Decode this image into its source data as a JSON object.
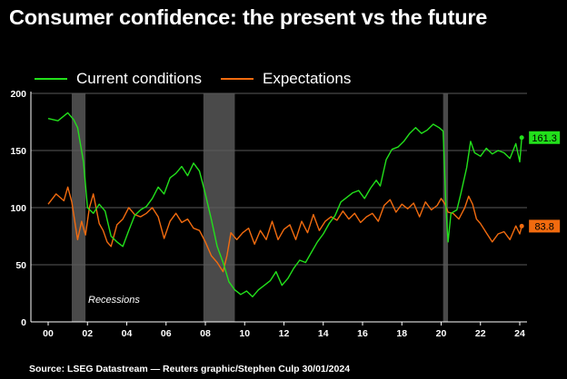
{
  "title": "Consumer confidence: the present vs the future",
  "source": "Source: LSEG Datastream — Reuters graphic/Stephen Culp 30/01/2024",
  "legend": [
    {
      "name": "Current conditions",
      "color": "#22e01b"
    },
    {
      "name": "Expectations",
      "color": "#f26b0f"
    }
  ],
  "recession_label": "Recessions",
  "chart_data": {
    "type": "line",
    "title": "Consumer confidence: the present vs the future",
    "xlabel": "",
    "ylabel": "",
    "x_ticks": [
      "00",
      "02",
      "04",
      "06",
      "08",
      "10",
      "12",
      "14",
      "16",
      "18",
      "20",
      "22",
      "24"
    ],
    "y_ticks": [
      0,
      50,
      100,
      150,
      200
    ],
    "xlim": [
      1999.4,
      2024.5
    ],
    "ylim": [
      0,
      200
    ],
    "grid": "horizontal",
    "legend_position": "top-left",
    "recessions": [
      [
        2001.2,
        2001.9
      ],
      [
        2007.9,
        2009.5
      ],
      [
        2020.1,
        2020.35
      ]
    ],
    "series": [
      {
        "name": "Current conditions",
        "color": "#22e01b",
        "end_label": "161.3",
        "points": [
          [
            2000.0,
            178
          ],
          [
            2000.5,
            176
          ],
          [
            2001.0,
            183
          ],
          [
            2001.3,
            177
          ],
          [
            2001.5,
            170
          ],
          [
            2001.8,
            140
          ],
          [
            2002.0,
            100
          ],
          [
            2002.3,
            95
          ],
          [
            2002.6,
            103
          ],
          [
            2002.9,
            97
          ],
          [
            2003.2,
            75
          ],
          [
            2003.5,
            70
          ],
          [
            2003.8,
            66
          ],
          [
            2004.1,
            80
          ],
          [
            2004.4,
            93
          ],
          [
            2004.7,
            98
          ],
          [
            2005.0,
            101
          ],
          [
            2005.3,
            108
          ],
          [
            2005.6,
            118
          ],
          [
            2005.9,
            112
          ],
          [
            2006.2,
            126
          ],
          [
            2006.5,
            130
          ],
          [
            2006.8,
            136
          ],
          [
            2007.1,
            128
          ],
          [
            2007.4,
            139
          ],
          [
            2007.7,
            132
          ],
          [
            2008.0,
            112
          ],
          [
            2008.3,
            90
          ],
          [
            2008.6,
            66
          ],
          [
            2008.9,
            52
          ],
          [
            2009.2,
            35
          ],
          [
            2009.5,
            28
          ],
          [
            2009.8,
            24
          ],
          [
            2010.1,
            27
          ],
          [
            2010.4,
            22
          ],
          [
            2010.7,
            28
          ],
          [
            2011.0,
            32
          ],
          [
            2011.3,
            36
          ],
          [
            2011.6,
            44
          ],
          [
            2011.9,
            32
          ],
          [
            2012.2,
            38
          ],
          [
            2012.5,
            47
          ],
          [
            2012.8,
            54
          ],
          [
            2013.1,
            52
          ],
          [
            2013.4,
            61
          ],
          [
            2013.7,
            70
          ],
          [
            2014.0,
            77
          ],
          [
            2014.3,
            86
          ],
          [
            2014.6,
            93
          ],
          [
            2014.9,
            105
          ],
          [
            2015.2,
            109
          ],
          [
            2015.5,
            113
          ],
          [
            2015.8,
            115
          ],
          [
            2016.1,
            108
          ],
          [
            2016.4,
            117
          ],
          [
            2016.7,
            124
          ],
          [
            2016.9,
            119
          ],
          [
            2017.2,
            142
          ],
          [
            2017.5,
            151
          ],
          [
            2017.8,
            153
          ],
          [
            2018.1,
            158
          ],
          [
            2018.4,
            165
          ],
          [
            2018.7,
            170
          ],
          [
            2019.0,
            165
          ],
          [
            2019.3,
            168
          ],
          [
            2019.6,
            173
          ],
          [
            2019.9,
            170
          ],
          [
            2020.1,
            167
          ],
          [
            2020.25,
            98
          ],
          [
            2020.35,
            70
          ],
          [
            2020.5,
            95
          ],
          [
            2020.8,
            98
          ],
          [
            2021.0,
            112
          ],
          [
            2021.3,
            135
          ],
          [
            2021.5,
            158
          ],
          [
            2021.7,
            148
          ],
          [
            2022.0,
            145
          ],
          [
            2022.3,
            152
          ],
          [
            2022.6,
            147
          ],
          [
            2022.9,
            150
          ],
          [
            2023.2,
            148
          ],
          [
            2023.5,
            143
          ],
          [
            2023.8,
            156
          ],
          [
            2024.0,
            140
          ],
          [
            2024.1,
            161.3
          ]
        ]
      },
      {
        "name": "Expectations",
        "color": "#f26b0f",
        "end_label": "83.8",
        "points": [
          [
            2000.0,
            103
          ],
          [
            2000.4,
            112
          ],
          [
            2000.8,
            106
          ],
          [
            2001.0,
            118
          ],
          [
            2001.2,
            105
          ],
          [
            2001.5,
            72
          ],
          [
            2001.7,
            88
          ],
          [
            2001.9,
            76
          ],
          [
            2002.1,
            100
          ],
          [
            2002.3,
            112
          ],
          [
            2002.6,
            86
          ],
          [
            2002.8,
            80
          ],
          [
            2003.0,
            70
          ],
          [
            2003.2,
            66
          ],
          [
            2003.5,
            85
          ],
          [
            2003.8,
            90
          ],
          [
            2004.1,
            100
          ],
          [
            2004.4,
            94
          ],
          [
            2004.7,
            92
          ],
          [
            2005.0,
            95
          ],
          [
            2005.3,
            100
          ],
          [
            2005.6,
            92
          ],
          [
            2005.9,
            73
          ],
          [
            2006.2,
            88
          ],
          [
            2006.5,
            95
          ],
          [
            2006.8,
            87
          ],
          [
            2007.1,
            90
          ],
          [
            2007.4,
            82
          ],
          [
            2007.7,
            80
          ],
          [
            2008.0,
            70
          ],
          [
            2008.3,
            58
          ],
          [
            2008.6,
            52
          ],
          [
            2008.9,
            44
          ],
          [
            2009.1,
            58
          ],
          [
            2009.3,
            78
          ],
          [
            2009.6,
            72
          ],
          [
            2009.9,
            78
          ],
          [
            2010.2,
            82
          ],
          [
            2010.5,
            68
          ],
          [
            2010.8,
            80
          ],
          [
            2011.1,
            72
          ],
          [
            2011.4,
            88
          ],
          [
            2011.7,
            72
          ],
          [
            2012.0,
            81
          ],
          [
            2012.3,
            85
          ],
          [
            2012.6,
            72
          ],
          [
            2012.9,
            88
          ],
          [
            2013.2,
            78
          ],
          [
            2013.5,
            94
          ],
          [
            2013.8,
            80
          ],
          [
            2014.1,
            88
          ],
          [
            2014.4,
            92
          ],
          [
            2014.7,
            89
          ],
          [
            2015.0,
            97
          ],
          [
            2015.3,
            90
          ],
          [
            2015.6,
            95
          ],
          [
            2015.9,
            87
          ],
          [
            2016.2,
            92
          ],
          [
            2016.5,
            95
          ],
          [
            2016.8,
            88
          ],
          [
            2017.1,
            102
          ],
          [
            2017.4,
            107
          ],
          [
            2017.7,
            96
          ],
          [
            2018.0,
            103
          ],
          [
            2018.3,
            99
          ],
          [
            2018.6,
            104
          ],
          [
            2018.9,
            92
          ],
          [
            2019.2,
            105
          ],
          [
            2019.5,
            98
          ],
          [
            2019.8,
            102
          ],
          [
            2020.0,
            108
          ],
          [
            2020.2,
            103
          ],
          [
            2020.35,
            96
          ],
          [
            2020.6,
            95
          ],
          [
            2020.9,
            90
          ],
          [
            2021.2,
            100
          ],
          [
            2021.4,
            110
          ],
          [
            2021.6,
            103
          ],
          [
            2021.8,
            90
          ],
          [
            2022.0,
            86
          ],
          [
            2022.3,
            78
          ],
          [
            2022.6,
            70
          ],
          [
            2022.9,
            77
          ],
          [
            2023.2,
            79
          ],
          [
            2023.5,
            72
          ],
          [
            2023.8,
            84
          ],
          [
            2024.0,
            77
          ],
          [
            2024.1,
            83.8
          ]
        ]
      }
    ]
  }
}
